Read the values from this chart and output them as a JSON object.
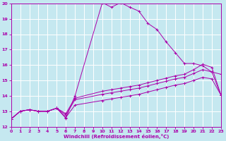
{
  "xlabel": "Windchill (Refroidissement éolien,°C)",
  "xlim": [
    0,
    23
  ],
  "ylim": [
    12,
    20
  ],
  "xticks": [
    0,
    1,
    2,
    3,
    4,
    5,
    6,
    7,
    8,
    9,
    10,
    11,
    12,
    13,
    14,
    15,
    16,
    17,
    18,
    19,
    20,
    21,
    22,
    23
  ],
  "yticks": [
    12,
    13,
    14,
    15,
    16,
    17,
    18,
    19,
    20
  ],
  "bg_color": "#c5e8f0",
  "line_color": "#aa00aa",
  "grid_color": "#ffffff",
  "line1_x": [
    0,
    1,
    2,
    3,
    4,
    5,
    6,
    7,
    10,
    11,
    12,
    13,
    14,
    15,
    16,
    17,
    18,
    19,
    20,
    21,
    22,
    23
  ],
  "line1_y": [
    12.5,
    13.0,
    13.1,
    13.0,
    13.0,
    13.2,
    12.55,
    14.0,
    20.05,
    19.75,
    20.05,
    19.75,
    19.5,
    18.7,
    18.3,
    17.5,
    16.8,
    16.1,
    16.1,
    15.95,
    15.55,
    15.4
  ],
  "line2_x": [
    0,
    1,
    2,
    3,
    4,
    5,
    6,
    7,
    10,
    11,
    12,
    13,
    14,
    15,
    16,
    17,
    18,
    19,
    20,
    21,
    22,
    23
  ],
  "line2_y": [
    12.5,
    13.0,
    13.1,
    13.0,
    13.0,
    13.2,
    12.85,
    13.85,
    14.3,
    14.4,
    14.5,
    14.6,
    14.7,
    14.85,
    15.0,
    15.15,
    15.3,
    15.4,
    15.7,
    16.05,
    15.85,
    14.05
  ],
  "line3_x": [
    0,
    1,
    2,
    3,
    4,
    5,
    6,
    7,
    10,
    11,
    12,
    13,
    14,
    15,
    16,
    17,
    18,
    19,
    20,
    21,
    22,
    23
  ],
  "line3_y": [
    12.5,
    13.0,
    13.1,
    13.0,
    13.0,
    13.2,
    12.75,
    13.75,
    14.1,
    14.2,
    14.3,
    14.4,
    14.5,
    14.65,
    14.8,
    14.95,
    15.1,
    15.2,
    15.45,
    15.7,
    15.55,
    14.05
  ],
  "line4_x": [
    0,
    1,
    2,
    3,
    4,
    5,
    6,
    7,
    10,
    11,
    12,
    13,
    14,
    15,
    16,
    17,
    18,
    19,
    20,
    21,
    22,
    23
  ],
  "line4_y": [
    12.5,
    13.0,
    13.1,
    13.0,
    13.0,
    13.2,
    12.6,
    13.4,
    13.7,
    13.8,
    13.9,
    14.0,
    14.1,
    14.25,
    14.4,
    14.55,
    14.7,
    14.8,
    15.0,
    15.2,
    15.1,
    14.05
  ]
}
